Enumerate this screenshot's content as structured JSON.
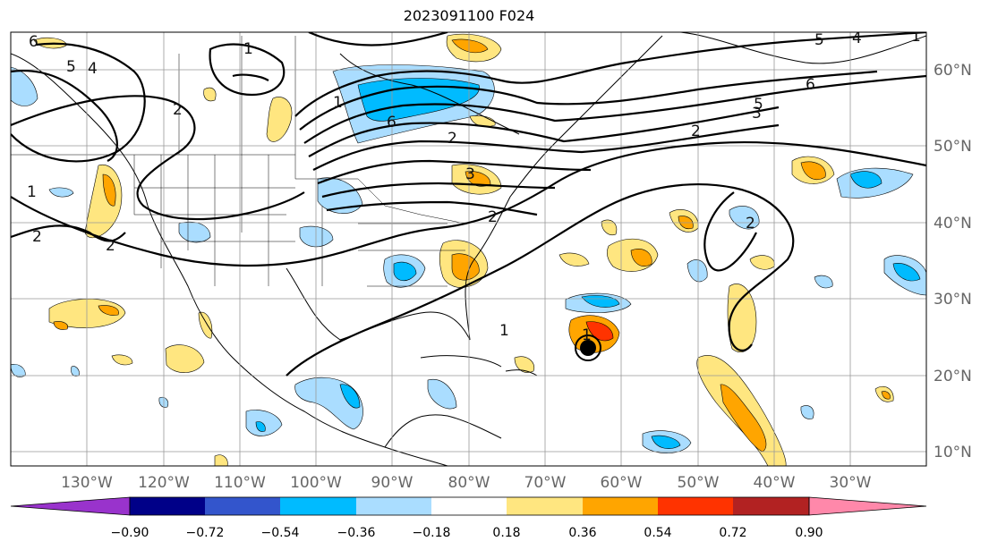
{
  "header": {
    "title": "2023091100 F024"
  },
  "lon_ticks": [
    {
      "value": -130,
      "label": "130°W"
    },
    {
      "value": -120,
      "label": "120°W"
    },
    {
      "value": -110,
      "label": "110°W"
    },
    {
      "value": -100,
      "label": "100°W"
    },
    {
      "value": -90,
      "label": "90°W"
    },
    {
      "value": -80,
      "label": "80°W"
    },
    {
      "value": -70,
      "label": "70°W"
    },
    {
      "value": -60,
      "label": "60°W"
    },
    {
      "value": -50,
      "label": "50°W"
    },
    {
      "value": -40,
      "label": "40°W"
    },
    {
      "value": -30,
      "label": "30°W"
    }
  ],
  "lat_ticks": [
    {
      "value": 60,
      "label": "60°N"
    },
    {
      "value": 50,
      "label": "50°N"
    },
    {
      "value": 40,
      "label": "40°N"
    },
    {
      "value": 30,
      "label": "30°N"
    },
    {
      "value": 20,
      "label": "20°N"
    },
    {
      "value": 10,
      "label": "10°N"
    }
  ],
  "colorbar": {
    "colors": [
      "#9933cc",
      "#000088",
      "#3355cc",
      "#00bbff",
      "#aaddff",
      "#ffffff",
      "#ffe680",
      "#ffa500",
      "#ff3300",
      "#b22222",
      "#ff88aa"
    ],
    "labels": [
      "−0.90",
      "−0.72",
      "−0.54",
      "−0.36",
      "−0.18",
      "0.18",
      "0.36",
      "0.54",
      "0.72",
      "0.90"
    ]
  },
  "contour_labels": [
    "6",
    "5",
    "4",
    "1",
    "2",
    "1",
    "6",
    "5",
    "4",
    "3",
    "2",
    "1",
    "6",
    "5",
    "3",
    "2",
    "2",
    "1",
    "2",
    "2",
    "1",
    "2",
    "1"
  ],
  "storm_marker": {
    "name": "tropical-cyclone",
    "lon": -65,
    "lat": 23
  }
}
